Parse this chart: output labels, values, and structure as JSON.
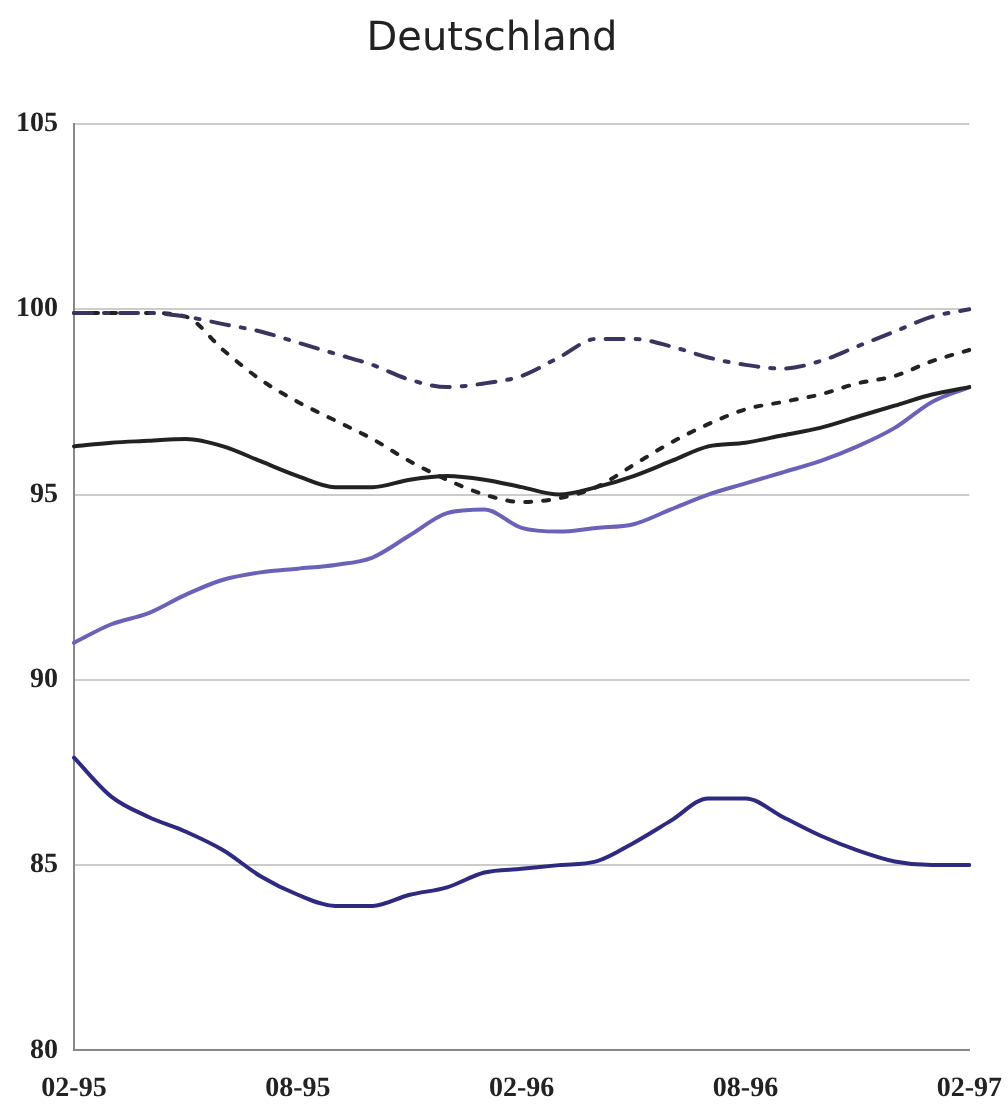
{
  "chart_data": {
    "type": "line",
    "title": "Deutschland",
    "categories": [
      "02-95",
      null,
      null,
      null,
      null,
      null,
      "08-95",
      null,
      null,
      null,
      null,
      null,
      "02-96",
      null,
      null,
      null,
      null,
      null,
      "08-96",
      null,
      null,
      null,
      null,
      null,
      "02-97"
    ],
    "series": [
      {
        "color": "#3a3560",
        "line_style": "dashed",
        "values": [
          99.9,
          99.9,
          99.9,
          99.8,
          99.6,
          99.4,
          99.1,
          98.8,
          98.5,
          98.1,
          97.9,
          98.0,
          98.2,
          98.7,
          99.2,
          99.2,
          99.0,
          98.7,
          98.5,
          98.4,
          98.6,
          99.0,
          99.4,
          99.8,
          100.0
        ]
      },
      {
        "color": "#222222",
        "line_style": "dotted",
        "values": [
          99.9,
          99.9,
          99.9,
          99.8,
          98.9,
          98.1,
          97.5,
          97.0,
          96.5,
          95.9,
          95.4,
          95.0,
          94.8,
          94.9,
          95.2,
          95.8,
          96.4,
          96.9,
          97.3,
          97.5,
          97.7,
          98.0,
          98.2,
          98.6,
          98.9
        ]
      },
      {
        "color": "#222222",
        "line_style": "solid",
        "values": [
          96.3,
          96.4,
          96.45,
          96.5,
          96.3,
          95.9,
          95.5,
          95.2,
          95.2,
          95.4,
          95.5,
          95.4,
          95.2,
          95.0,
          95.2,
          95.5,
          95.9,
          96.3,
          96.4,
          96.6,
          96.8,
          97.1,
          97.4,
          97.7,
          97.9
        ]
      },
      {
        "color": "#6a62b8",
        "line_style": "solid",
        "values": [
          91.0,
          91.5,
          91.8,
          92.3,
          92.7,
          92.9,
          93.0,
          93.1,
          93.3,
          93.9,
          94.5,
          94.6,
          94.1,
          94.0,
          94.1,
          94.2,
          94.6,
          95.0,
          95.3,
          95.6,
          95.9,
          96.3,
          96.8,
          97.5,
          97.9
        ]
      },
      {
        "color": "#2e2a80",
        "line_style": "solid",
        "values": [
          87.9,
          86.85,
          86.3,
          85.9,
          85.4,
          84.7,
          84.2,
          83.9,
          83.9,
          84.2,
          84.4,
          84.8,
          84.9,
          85.0,
          85.1,
          85.6,
          86.2,
          86.8,
          86.8,
          86.3,
          85.8,
          85.4,
          85.1,
          85.0,
          85.0
        ]
      }
    ],
    "ylim": [
      80,
      105
    ],
    "yticks": [
      80,
      85,
      90,
      95,
      100,
      105
    ],
    "grid": "y",
    "legend": false,
    "marker": "none"
  }
}
